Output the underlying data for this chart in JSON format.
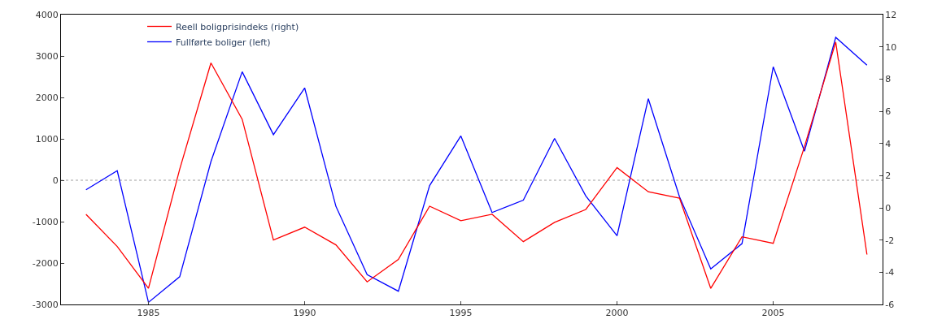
{
  "chart_data": {
    "type": "line",
    "x": [
      1983,
      1984,
      1985,
      1986,
      1987,
      1988,
      1989,
      1990,
      1991,
      1992,
      1993,
      1994,
      1995,
      1996,
      1997,
      1998,
      1999,
      2000,
      2001,
      2002,
      2003,
      2004,
      2005,
      2006,
      2007,
      2008
    ],
    "series": [
      {
        "name": "Reell boligprisindeks (right)",
        "color": "#ff0000",
        "axis": "y2",
        "values": [
          -0.4,
          -2.4,
          -5.0,
          2.4,
          9.0,
          5.5,
          -2.0,
          -1.2,
          -2.3,
          -4.6,
          -3.2,
          0.1,
          -0.8,
          -0.4,
          -2.1,
          -0.9,
          -0.1,
          2.5,
          1.0,
          0.6,
          -5.0,
          -1.8,
          -2.2,
          3.8,
          10.3,
          -2.9
        ]
      },
      {
        "name": "Fullførte boliger (left)",
        "color": "#0000ff",
        "values": [
          -230,
          230,
          -2950,
          -2330,
          450,
          2620,
          1100,
          2230,
          -630,
          -2280,
          -2680,
          -130,
          1070,
          -780,
          -480,
          1010,
          -380,
          -1340,
          1970,
          -400,
          -2140,
          -1530,
          2740,
          700,
          3450,
          2780
        ]
      }
    ],
    "xlim": [
      1982.2,
      2008.5
    ],
    "xticks": [
      1985,
      1990,
      1995,
      2000,
      2005
    ],
    "ylim": [
      -3000,
      4000
    ],
    "yticks": [
      -3000,
      -2000,
      -1000,
      0,
      1000,
      2000,
      3000,
      4000
    ],
    "y2lim": [
      -6,
      12
    ],
    "y2ticks": [
      -6,
      -4,
      -2,
      0,
      2,
      4,
      6,
      8,
      10,
      12
    ],
    "ref_lines": [
      {
        "axis": "y",
        "value": 0,
        "color": "#a0a0a0",
        "line_style": "dotted"
      }
    ],
    "legend": "top left",
    "grid": false,
    "marker": "none",
    "line_style": "solid"
  }
}
